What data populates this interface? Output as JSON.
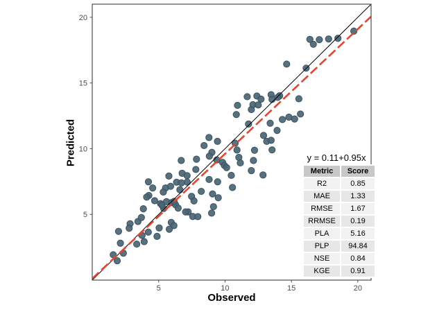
{
  "chart_data": {
    "type": "scatter",
    "title": "",
    "xlabel": "Observed",
    "ylabel": "Predicted",
    "xlim": [
      0,
      21
    ],
    "ylim": [
      0,
      21
    ],
    "xticks": [
      5,
      10,
      15,
      20
    ],
    "yticks": [
      5,
      10,
      15,
      20
    ],
    "grid": false,
    "point_radius": 4.6,
    "identity_line": {
      "x1": 0,
      "y1": 0,
      "x2": 21,
      "y2": 21,
      "style": "solid"
    },
    "regression_line": {
      "intercept": 0.11,
      "slope": 0.95,
      "style": "dashed"
    },
    "points": [
      [
        6.7,
        9.1
      ],
      [
        7.85,
        9.2
      ],
      [
        7.8,
        8.42
      ],
      [
        6.77,
        8.13
      ],
      [
        7.14,
        7.95
      ],
      [
        5.77,
        7.92
      ],
      [
        6.35,
        7.45
      ],
      [
        6.72,
        7.4
      ],
      [
        7.15,
        7.46
      ],
      [
        4.23,
        7.48
      ],
      [
        5.52,
        7.01
      ],
      [
        5.9,
        7.14
      ],
      [
        4.55,
        7.01
      ],
      [
        6.6,
        6.88
      ],
      [
        4.26,
        6.44
      ],
      [
        4.1,
        6.32
      ],
      [
        5.35,
        6.7
      ],
      [
        4.7,
        6.04
      ],
      [
        5.14,
        5.82
      ],
      [
        5.59,
        5.97
      ],
      [
        5.97,
        5.9
      ],
      [
        6.27,
        5.74
      ],
      [
        7.48,
        6.37
      ],
      [
        7.66,
        6.03
      ],
      [
        6.47,
        5.48
      ],
      [
        3.85,
        5.43
      ],
      [
        5.38,
        5.45
      ],
      [
        10.85,
        12.6
      ],
      [
        11.98,
        12.98
      ],
      [
        11.77,
        11.88
      ],
      [
        13.4,
        11.94
      ],
      [
        13.92,
        11.39
      ],
      [
        14.32,
        12.22
      ],
      [
        14.81,
        12.4
      ],
      [
        15.24,
        12.26
      ],
      [
        12.9,
        11.01
      ],
      [
        13.14,
        10.56
      ],
      [
        13.47,
        10.64
      ],
      [
        13.54,
        9.91
      ],
      [
        8.79,
        10.85
      ],
      [
        9.43,
        10.56
      ],
      [
        8.42,
        10.24
      ],
      [
        12.22,
        9.88
      ],
      [
        10.76,
        10.42
      ],
      [
        10.9,
        9.9
      ],
      [
        9.01,
        9.72
      ],
      [
        8.82,
        9.43
      ],
      [
        9.38,
        9.15
      ],
      [
        9.81,
        8.96
      ],
      [
        9.95,
        8.73
      ],
      [
        11.04,
        9.34
      ],
      [
        11.15,
        8.92
      ],
      [
        12.14,
        9.1
      ],
      [
        10.12,
        8.56
      ],
      [
        11.98,
        8.33
      ],
      [
        12.86,
        8.0
      ],
      [
        10.47,
        7.97
      ],
      [
        8.8,
        7.66
      ],
      [
        9.44,
        7.48
      ],
      [
        8.21,
        6.75
      ],
      [
        9.06,
        6.56
      ],
      [
        9.49,
        6.27
      ],
      [
        10.56,
        7.05
      ],
      [
        9.13,
        5.59
      ],
      [
        16.39,
        18.32
      ],
      [
        16.65,
        17.95
      ],
      [
        17.1,
        18.3
      ],
      [
        17.8,
        18.35
      ],
      [
        18.5,
        18.4
      ],
      [
        19.7,
        18.95
      ],
      [
        14.64,
        16.44
      ],
      [
        16.11,
        16.13
      ],
      [
        14.11,
        14.03
      ],
      [
        15.56,
        13.8
      ],
      [
        15.68,
        12.64
      ],
      [
        11.67,
        13.96
      ],
      [
        12.4,
        14.01
      ],
      [
        12.71,
        13.77
      ],
      [
        13.47,
        14.11
      ],
      [
        13.54,
        13.75
      ],
      [
        13.97,
        13.91
      ],
      [
        10.94,
        13.3
      ],
      [
        12.1,
        13.35
      ],
      [
        12.5,
        13.33
      ],
      [
        5.24,
        5.71
      ],
      [
        6.16,
        5.99
      ],
      [
        7.22,
        5.19
      ],
      [
        7.03,
        5.19
      ],
      [
        7.57,
        4.84
      ],
      [
        2.85,
        4.29
      ],
      [
        3.44,
        4.46
      ],
      [
        3.7,
        4.76
      ],
      [
        5.95,
        4.39
      ],
      [
        6.15,
        4.15
      ],
      [
        5.04,
        3.97
      ],
      [
        5.8,
        3.87
      ],
      [
        1.98,
        3.71
      ],
      [
        4.22,
        3.65
      ],
      [
        3.75,
        3.4
      ],
      [
        4.88,
        3.33
      ],
      [
        3.35,
        2.74
      ],
      [
        2.12,
        2.81
      ],
      [
        2.34,
        2.05
      ],
      [
        1.58,
        1.93
      ],
      [
        1.88,
        1.47
      ],
      [
        8.99,
        5.1
      ],
      [
        7.95,
        4.83
      ],
      [
        3.91,
        2.93
      ],
      [
        2.78,
        3.95
      ]
    ]
  },
  "annotation": {
    "equation": "y = 0.11+0.95x",
    "table": {
      "headers": [
        "Metric",
        "Score"
      ],
      "rows": [
        [
          "R2",
          "0.85"
        ],
        [
          "MAE",
          "1.33"
        ],
        [
          "RMSE",
          "1.67"
        ],
        [
          "RRMSE",
          "0.19"
        ],
        [
          "PLA",
          "5.16"
        ],
        [
          "PLP",
          "94.84"
        ],
        [
          "NSE",
          "0.84"
        ],
        [
          "KGE",
          "0.91"
        ]
      ]
    }
  },
  "colors": {
    "point_fill": "#4a6574",
    "point_edge": "#3b5260",
    "identity_line": "#000000",
    "fit_line": "#e8432c",
    "panel_border": "#4d4d4d",
    "tick_label": "#4d4d4d",
    "table_header_bg": "#c8c8c8",
    "table_row_odd": "#f2f2f2",
    "table_row_even": "#e7e7e7"
  }
}
